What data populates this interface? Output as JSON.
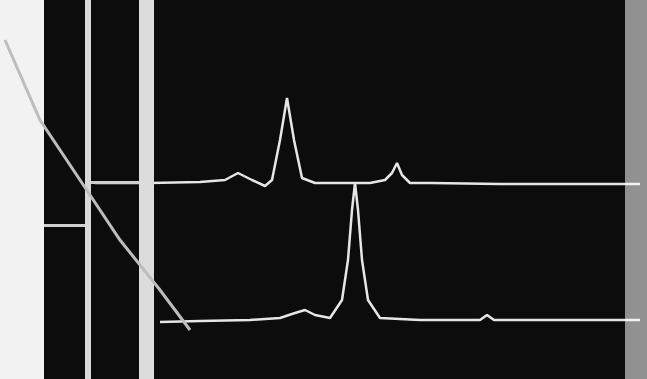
{
  "chart_data": {
    "type": "line",
    "tick_labels": false,
    "grid": false,
    "xlim": [
      0,
      647
    ],
    "ylim": [
      0,
      379
    ],
    "series": [
      {
        "color": "#e6e6e6",
        "x": [
          95,
          150,
          200,
          225,
          238,
          252,
          265,
          272,
          280,
          287,
          294,
          302,
          315,
          340,
          370,
          385,
          392,
          397,
          402,
          410,
          430,
          500,
          560,
          640
        ],
        "values": [
          196,
          196,
          197,
          199,
          206,
          199,
          193,
          199,
          239,
          281,
          239,
          201,
          196,
          196,
          196,
          199,
          206,
          216,
          204,
          196,
          196,
          195,
          195,
          195
        ]
      },
      {
        "color": "#e6e6e6",
        "x": [
          160,
          200,
          250,
          280,
          295,
          305,
          315,
          330,
          342,
          348,
          352,
          355,
          358,
          362,
          368,
          380,
          420,
          470,
          480,
          487,
          494,
          520,
          580,
          640
        ],
        "values": [
          57,
          58,
          59,
          61,
          66,
          69,
          64,
          61,
          79,
          119,
          169,
          196,
          169,
          119,
          79,
          61,
          59,
          59,
          59,
          64,
          59,
          59,
          59,
          59
        ]
      }
    ]
  }
}
